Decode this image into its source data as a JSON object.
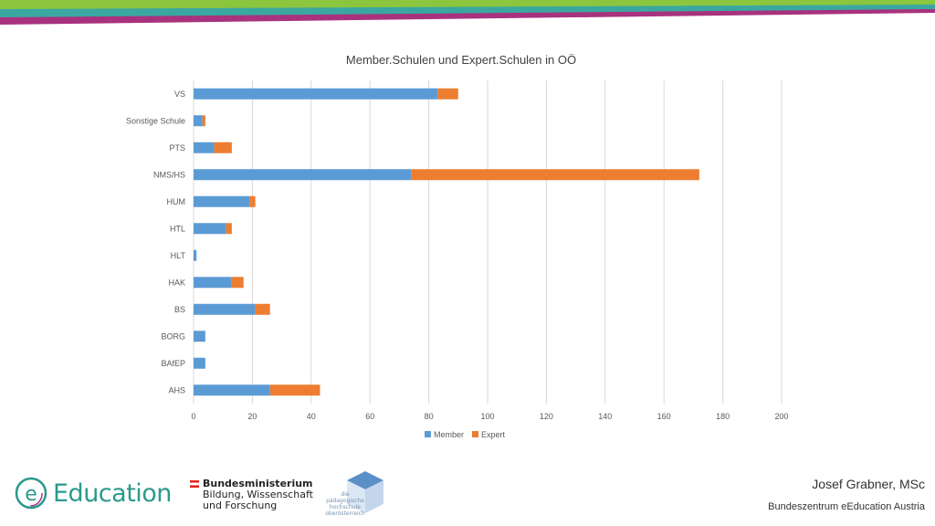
{
  "chart_data": {
    "type": "bar",
    "orientation": "horizontal",
    "stacked": true,
    "title": "Member.Schulen und Expert.Schulen in OÖ",
    "categories": [
      "AHS",
      "BAfEP",
      "BORG",
      "BS",
      "HAK",
      "HLT",
      "HTL",
      "HUM",
      "NMS/HS",
      "PTS",
      "Sonstige Schule",
      "VS"
    ],
    "series": [
      {
        "name": "Member",
        "color": "#5b9bd5",
        "values": [
          26,
          4,
          4,
          21,
          13,
          1,
          11,
          19,
          74,
          7,
          3,
          83
        ]
      },
      {
        "name": "Expert",
        "color": "#ed7d31",
        "values": [
          17,
          0,
          0,
          5,
          4,
          0,
          2,
          2,
          98,
          6,
          1,
          7
        ]
      }
    ],
    "xlim": [
      0,
      200
    ],
    "xticks": [
      0,
      20,
      40,
      60,
      80,
      100,
      120,
      140,
      160,
      180,
      200
    ],
    "grid": "vertical",
    "legend_position": "bottom"
  },
  "footer": {
    "logo_text": "Education",
    "logo_letter": "e",
    "ministry_line1": "Bundesministerium",
    "ministry_line2": "Bildung, Wissenschaft",
    "ministry_line3": "und Forschung",
    "phz_text": "die pädagogische hochschule oberösterreich",
    "author": "Josef Grabner, MSc",
    "organization": "Bundeszentrum eEducation Austria"
  },
  "colors": {
    "accent_teal": "#2a9a8c",
    "stripe_green": "#8cc63f",
    "stripe_teal": "#3aa8a0",
    "stripe_magenta": "#a8327e"
  }
}
